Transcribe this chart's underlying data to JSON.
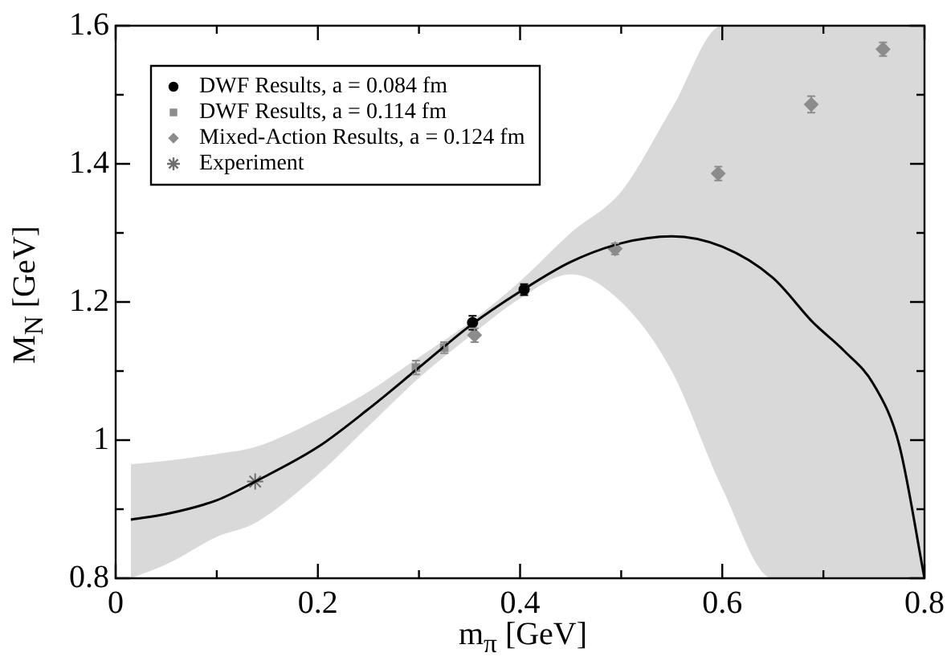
{
  "chart_data": {
    "type": "scatter",
    "xlabel": "m$_{π}$ [GeV]",
    "ylabel": "M$_{N}$ [GeV]",
    "xlim": [
      0,
      0.8
    ],
    "ylim": [
      0.8,
      1.6
    ],
    "xticks": [
      0,
      {
        "value": 0.1,
        "label": null
      },
      0.2,
      {
        "value": 0.3,
        "label": null
      },
      0.4,
      {
        "value": 0.5,
        "label": null
      },
      0.6,
      {
        "value": 0.7,
        "label": null
      },
      0.8
    ],
    "yticks": [
      0.8,
      {
        "value": 0.9,
        "label": null
      },
      1,
      {
        "value": 1.1,
        "label": null
      },
      1.2,
      {
        "value": 1.3,
        "label": null
      },
      1.4,
      {
        "value": 1.5,
        "label": null
      },
      1.6
    ],
    "legend": "top left",
    "grid": false,
    "series": [
      {
        "type": "line",
        "color": "#000000",
        "marker": "none",
        "x": [
          0.015,
          0.05,
          0.1,
          0.138,
          0.2,
          0.25,
          0.3,
          0.35,
          0.4,
          0.45,
          0.5,
          0.55,
          0.6,
          0.65,
          0.69,
          0.72,
          0.75,
          0.775,
          0.8
        ],
        "values": [
          0.885,
          0.893,
          0.913,
          0.94,
          0.99,
          1.045,
          1.105,
          1.165,
          1.215,
          1.258,
          1.285,
          1.295,
          1.28,
          1.235,
          1.17,
          1.13,
          1.08,
          0.993,
          0.8
        ],
        "lower": [
          0.8,
          0.82,
          0.86,
          0.88,
          0.95,
          1.02,
          1.09,
          1.15,
          1.205,
          1.24,
          1.2,
          1.1,
          0.93,
          0.8,
          0.8,
          0.8,
          0.8,
          0.8,
          0.8
        ],
        "upper": [
          0.965,
          0.97,
          0.98,
          0.99,
          1.03,
          1.07,
          1.12,
          1.17,
          1.23,
          1.3,
          1.36,
          1.48,
          1.6,
          1.6,
          1.6,
          1.6,
          1.6,
          1.6,
          1.6
        ]
      },
      {
        "name": "DWF Results, a = 0.084 fm",
        "color": "#000000",
        "marker": "circle",
        "x": [
          0.353,
          0.404
        ],
        "values": [
          1.17,
          1.218
        ],
        "errors": [
          0.01,
          0.008
        ]
      },
      {
        "name": "DWF Results, a = 0.114 fm",
        "color": "#8c8c8c",
        "marker": "square",
        "x": [
          0.297,
          0.325
        ],
        "values": [
          1.105,
          1.134
        ],
        "errors": [
          0.01,
          0.008
        ]
      },
      {
        "name": "Mixed-Action Results, a = 0.124 fm",
        "color": "#8c8c8c",
        "marker": "diamond",
        "x": [
          0.355,
          0.494,
          0.596,
          0.688,
          0.759
        ],
        "values": [
          1.152,
          1.277,
          1.386,
          1.486,
          1.566
        ],
        "errors": [
          0.01,
          0.008,
          0.01,
          0.012,
          0.01
        ]
      },
      {
        "name": "Experiment",
        "color": "#6e6e6e",
        "marker": "cross",
        "x": [
          0.138
        ],
        "values": [
          0.94
        ]
      }
    ]
  }
}
